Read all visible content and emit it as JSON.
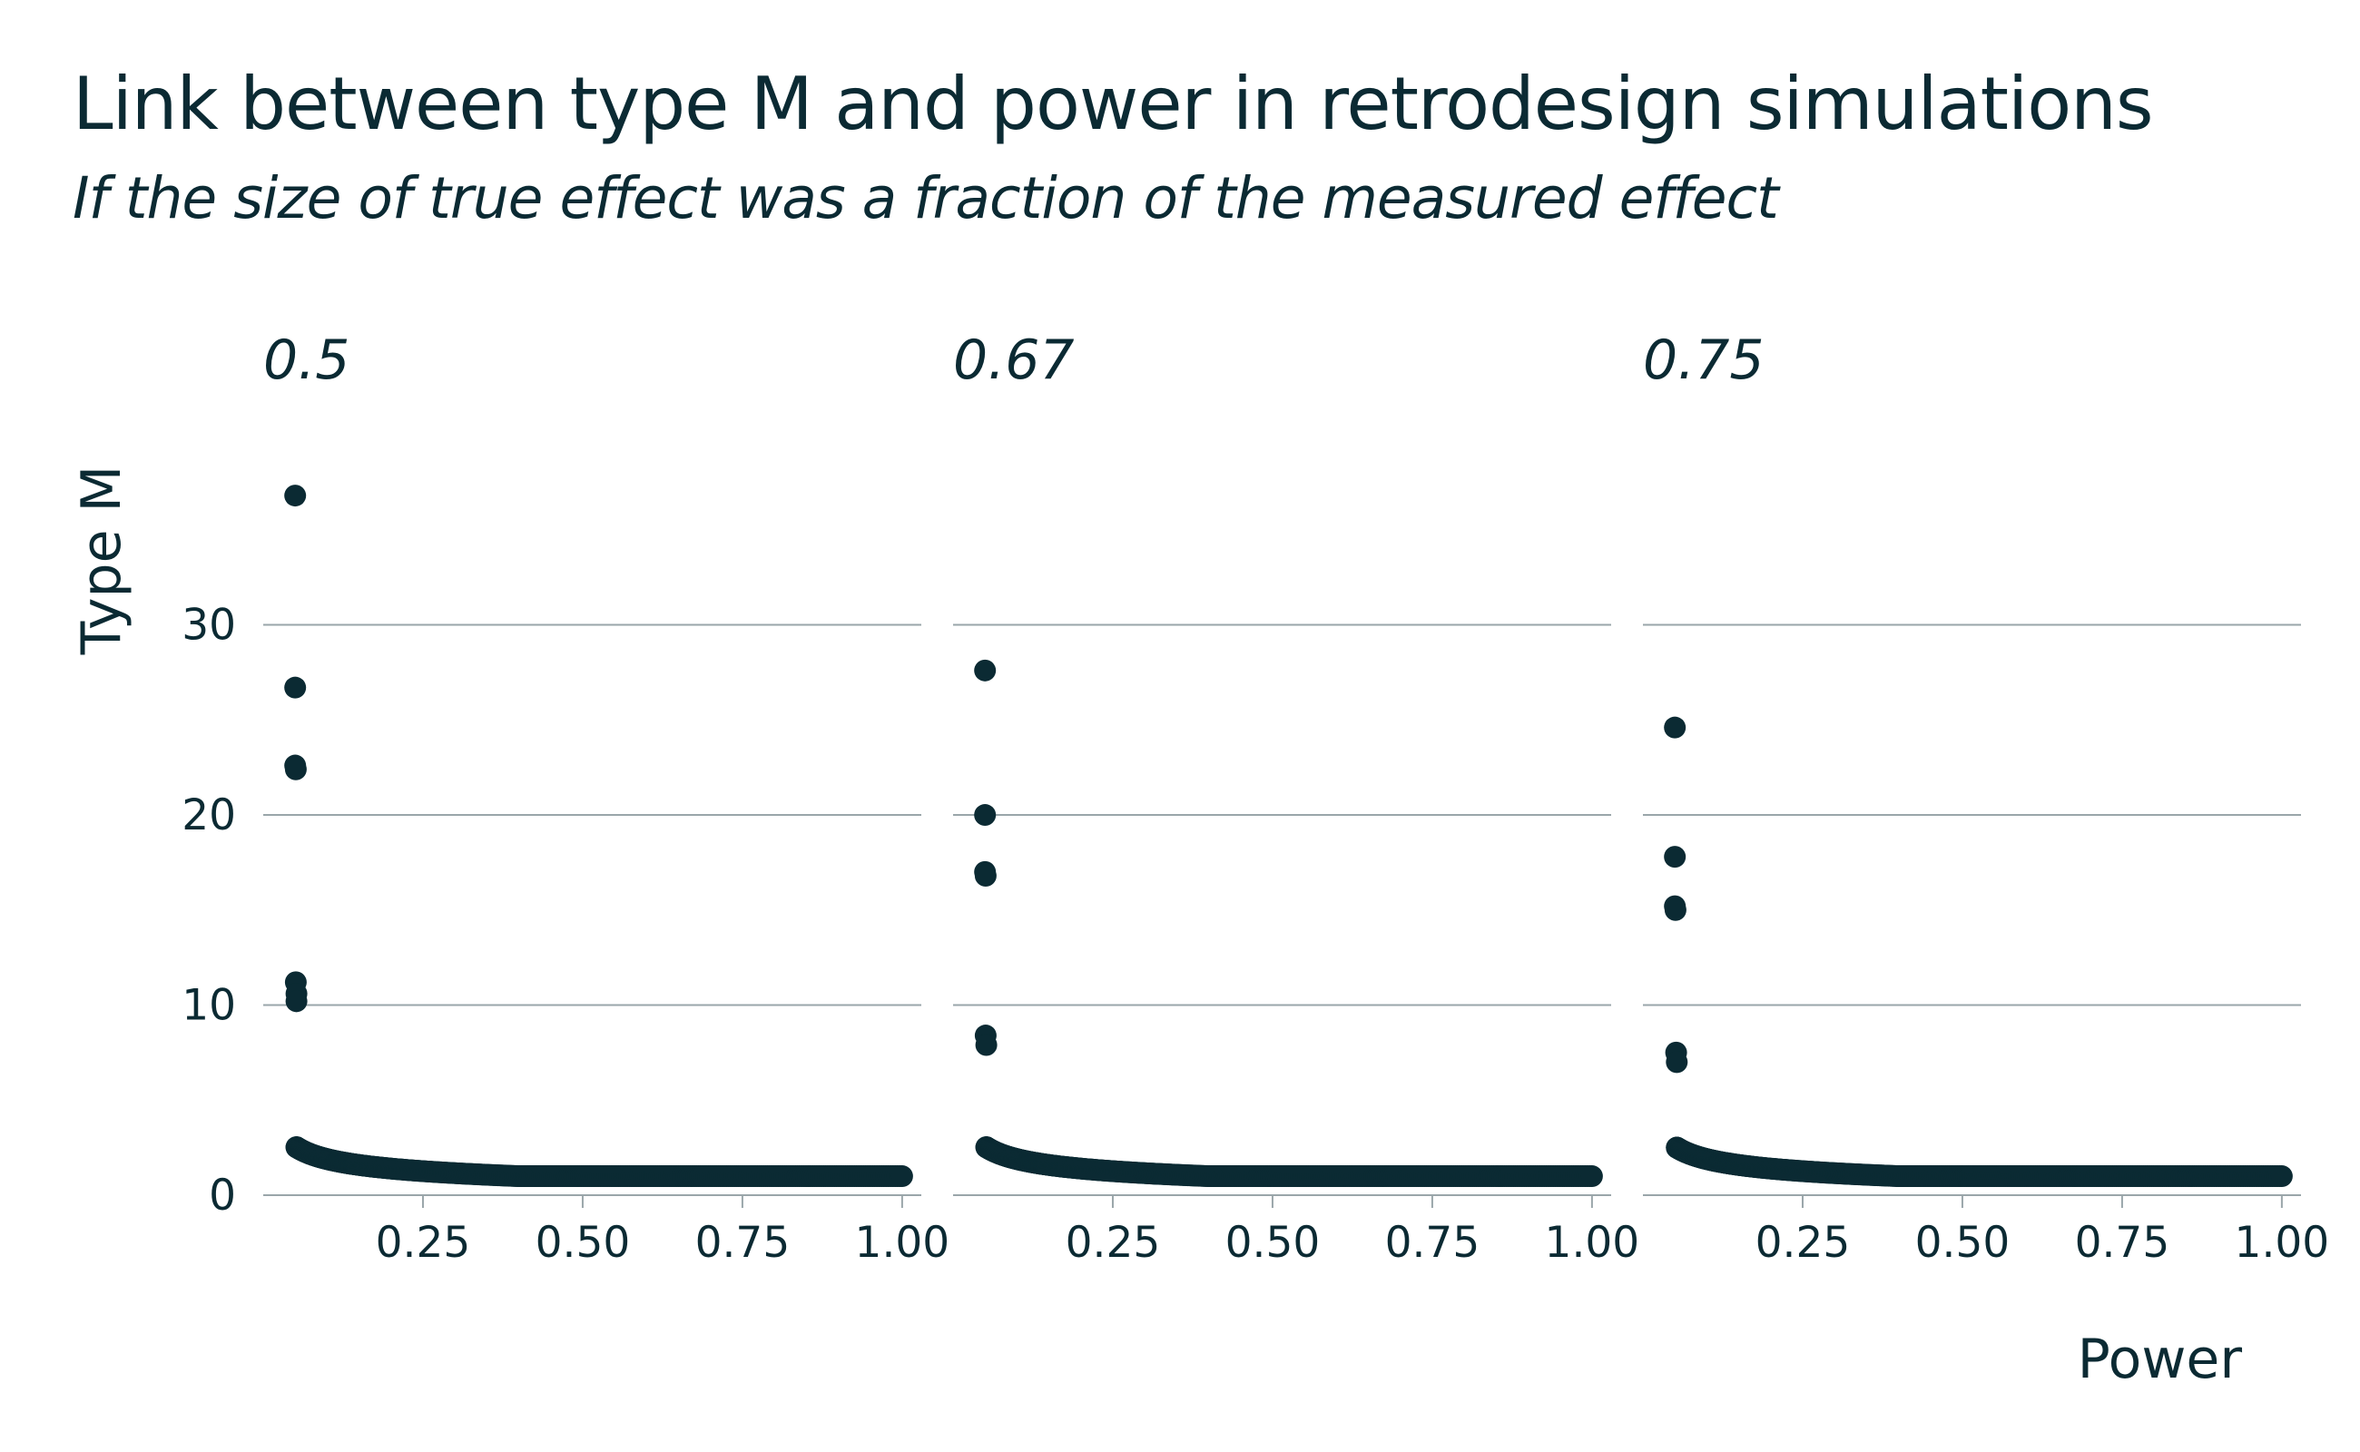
{
  "chart_data": {
    "type": "scatter",
    "title": "Link between type M and power in retrodesign simulations",
    "subtitle": "If the size of true effect was a fraction of the measured effect",
    "xlabel": "Power",
    "ylabel": "Type M",
    "xlim": [
      0,
      1.03
    ],
    "ylim": [
      0,
      39
    ],
    "x_ticks": [
      "0.25",
      "0.50",
      "0.75",
      "1.00"
    ],
    "y_ticks": [
      "0",
      "10",
      "20",
      "30"
    ],
    "grid": "horizontal",
    "point_color": "#0b2a33",
    "facets": [
      {
        "label": "0.5",
        "outliers": [
          {
            "x": 0.05,
            "y": 36.8
          },
          {
            "x": 0.05,
            "y": 26.7
          },
          {
            "x": 0.05,
            "y": 22.6
          },
          {
            "x": 0.051,
            "y": 22.4
          },
          {
            "x": 0.051,
            "y": 11.2
          },
          {
            "x": 0.052,
            "y": 10.6
          },
          {
            "x": 0.052,
            "y": 10.2
          }
        ],
        "curve": {
          "type": "inverse-power",
          "k": 0.5,
          "x_start": 0.052,
          "x_end": 1.0
        }
      },
      {
        "label": "0.67",
        "outliers": [
          {
            "x": 0.05,
            "y": 27.6
          },
          {
            "x": 0.05,
            "y": 20.0
          },
          {
            "x": 0.05,
            "y": 17.0
          },
          {
            "x": 0.051,
            "y": 16.8
          },
          {
            "x": 0.051,
            "y": 8.4
          },
          {
            "x": 0.052,
            "y": 7.9
          }
        ],
        "curve": {
          "type": "inverse-power",
          "k": 0.5,
          "x_start": 0.052,
          "x_end": 1.0
        }
      },
      {
        "label": "0.75",
        "outliers": [
          {
            "x": 0.05,
            "y": 24.6
          },
          {
            "x": 0.05,
            "y": 17.8
          },
          {
            "x": 0.05,
            "y": 15.2
          },
          {
            "x": 0.051,
            "y": 15.0
          },
          {
            "x": 0.052,
            "y": 7.5
          },
          {
            "x": 0.053,
            "y": 7.0
          }
        ],
        "curve": {
          "type": "inverse-power",
          "k": 0.5,
          "x_start": 0.053,
          "x_end": 1.0
        }
      }
    ]
  }
}
